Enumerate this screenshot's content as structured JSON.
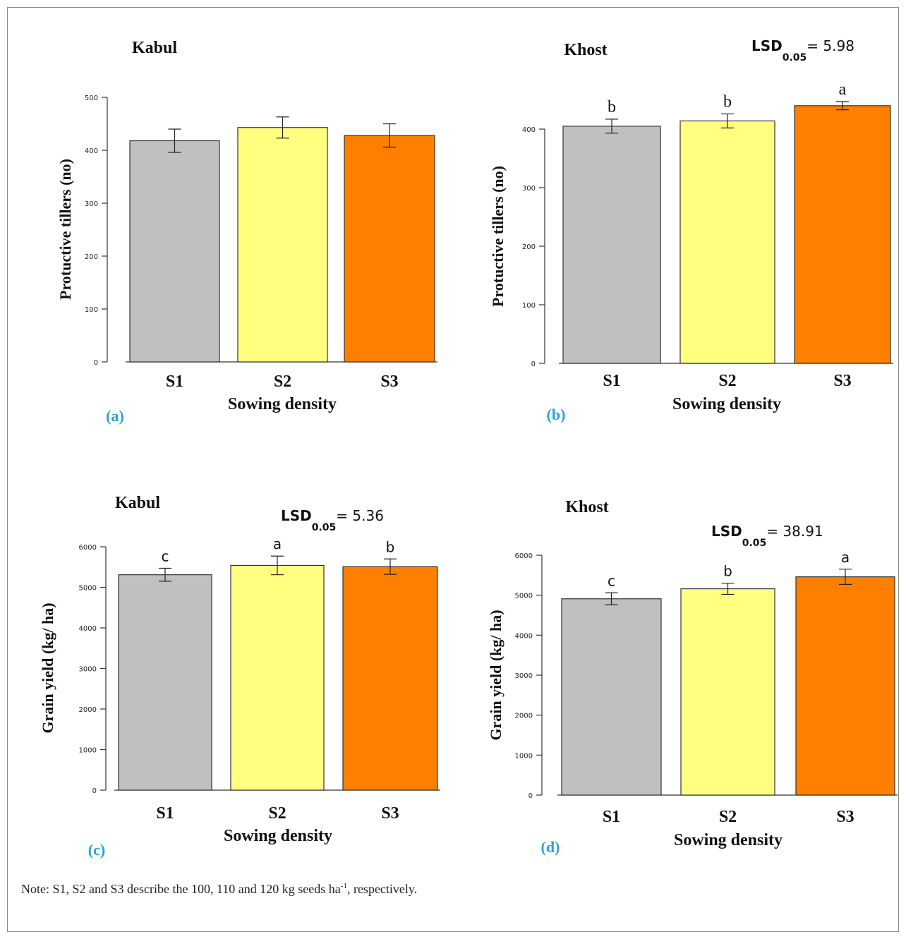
{
  "note": {
    "text_before": "Note: S1, S2 and S3 describe the 100, 110 and 120 kg seeds ha",
    "superscript": "-1",
    "text_after": ", respectively."
  },
  "chart_data": [
    {
      "type": "bar",
      "panel_label": "(a)",
      "title": "Kabul",
      "xlabel": "Sowing density",
      "ylabel": "Protuctive tillers (no)",
      "categories": [
        "S1",
        "S2",
        "S3"
      ],
      "values": [
        418,
        443,
        428
      ],
      "errors": [
        22,
        20,
        22
      ],
      "significance": [
        "",
        "",
        ""
      ],
      "colors": [
        "#c0c0c0",
        "#ffff80",
        "#ff7f00"
      ],
      "ylim": [
        0,
        500
      ],
      "yticks": [
        0,
        100,
        200,
        300,
        400,
        500
      ],
      "lsd": null
    },
    {
      "type": "bar",
      "panel_label": "(b)",
      "title": "Khost",
      "xlabel": "Sowing density",
      "ylabel": "Protuctive tillers (no)",
      "categories": [
        "S1",
        "S2",
        "S3"
      ],
      "values": [
        405,
        414,
        440
      ],
      "errors": [
        12,
        12,
        7
      ],
      "significance": [
        "b",
        "b",
        "a"
      ],
      "colors": [
        "#c0c0c0",
        "#ffff80",
        "#ff7f00"
      ],
      "ylim": [
        0,
        450
      ],
      "yticks": [
        0,
        100,
        200,
        300,
        400
      ],
      "lsd": {
        "label": "LSD",
        "subscript": "0.05",
        "value": "= 5.98"
      }
    },
    {
      "type": "bar",
      "panel_label": "(c)",
      "title": "Kabul",
      "xlabel": "Sowing density",
      "ylabel": "Grain yield (kg/ ha)",
      "categories": [
        "S1",
        "S2",
        "S3"
      ],
      "values": [
        5310,
        5540,
        5510
      ],
      "errors": [
        160,
        230,
        190
      ],
      "significance": [
        "c",
        "a",
        "b"
      ],
      "colors": [
        "#c0c0c0",
        "#ffff80",
        "#ff7f00"
      ],
      "ylim": [
        0,
        6000
      ],
      "yticks": [
        0,
        1000,
        2000,
        3000,
        4000,
        5000,
        6000
      ],
      "lsd": {
        "label": "LSD",
        "subscript": "0.05",
        "value": "= 5.36"
      }
    },
    {
      "type": "bar",
      "panel_label": "(d)",
      "title": "Khost",
      "xlabel": "Sowing density",
      "ylabel": "Grain yield (kg/ ha)",
      "categories": [
        "S1",
        "S2",
        "S3"
      ],
      "values": [
        4910,
        5160,
        5460
      ],
      "errors": [
        150,
        140,
        190
      ],
      "significance": [
        "c",
        "b",
        "a"
      ],
      "colors": [
        "#c0c0c0",
        "#ffff80",
        "#ff7f00"
      ],
      "ylim": [
        0,
        6000
      ],
      "yticks": [
        0,
        1000,
        2000,
        3000,
        4000,
        5000,
        6000
      ],
      "lsd": {
        "label": "LSD",
        "subscript": "0.05",
        "value": "= 38.91"
      }
    }
  ]
}
